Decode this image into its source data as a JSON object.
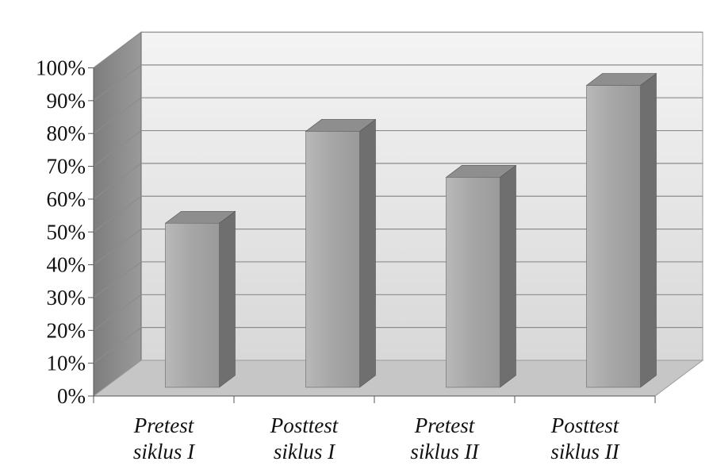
{
  "chart_data": {
    "type": "bar",
    "style": "3d-column",
    "categories": [
      [
        "Pretest",
        "siklus I"
      ],
      [
        "Posttest",
        "siklus I"
      ],
      [
        "Pretest",
        "siklus II"
      ],
      [
        "Posttest",
        "siklus II"
      ]
    ],
    "series": [
      {
        "values": [
          50,
          78,
          64,
          92
        ]
      }
    ],
    "yticks": [
      "0%",
      "10%",
      "20%",
      "30%",
      "40%",
      "50%",
      "60%",
      "70%",
      "80%",
      "90%",
      "100%"
    ],
    "ylim": [
      0,
      100
    ],
    "unit": "%",
    "grid": true,
    "legend": "none",
    "colors": {
      "bar_front": "#a9a9a9",
      "bar_side": "#6f6f6f",
      "bar_top": "#8e8e8e",
      "back_wall": "#e2e2e2",
      "side_wall": "#8a8a8a",
      "floor": "#c6c6c6",
      "gridline": "#8c8c8c"
    }
  }
}
